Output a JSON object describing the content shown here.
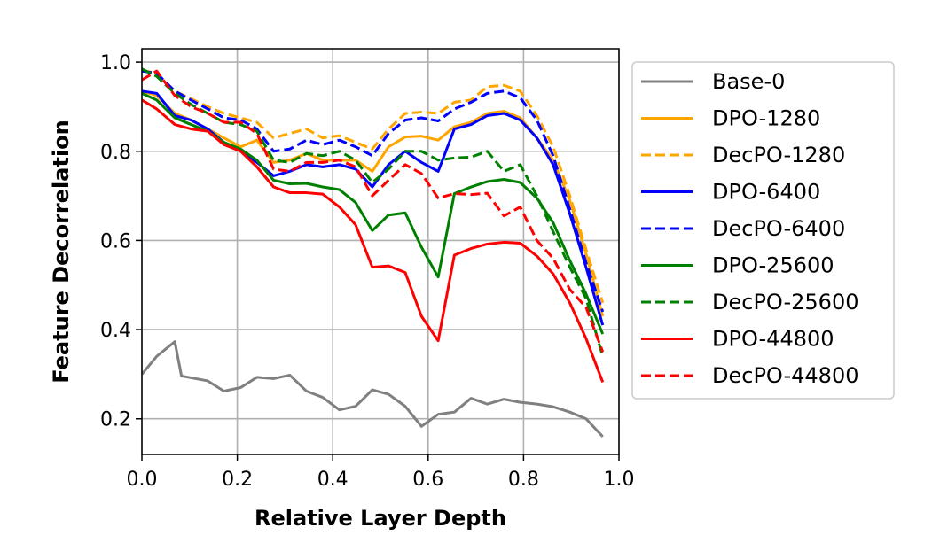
{
  "chart_data": {
    "type": "line",
    "title": "",
    "xlabel": "Relative Layer Depth",
    "ylabel": "Feature Decorrelation",
    "xlim": [
      0.0,
      1.0
    ],
    "ylim": [
      0.12,
      1.03
    ],
    "xticks": [
      "0.0",
      "0.2",
      "0.4",
      "0.6",
      "0.8",
      "1.0"
    ],
    "yticks": [
      "0.2",
      "0.4",
      "0.6",
      "0.8",
      "1.0"
    ],
    "grid": true,
    "legend_position": "right-outside",
    "series": [
      {
        "name": "Base-0",
        "color": "#808080",
        "dash": "solid",
        "x": [
          0.0,
          0.031,
          0.069,
          0.083,
          0.138,
          0.172,
          0.207,
          0.241,
          0.276,
          0.31,
          0.345,
          0.379,
          0.414,
          0.448,
          0.483,
          0.517,
          0.552,
          0.586,
          0.621,
          0.655,
          0.69,
          0.724,
          0.759,
          0.793,
          0.828,
          0.862,
          0.897,
          0.931,
          0.966
        ],
        "y": [
          0.3,
          0.34,
          0.373,
          0.296,
          0.285,
          0.262,
          0.27,
          0.293,
          0.29,
          0.298,
          0.262,
          0.248,
          0.22,
          0.228,
          0.265,
          0.255,
          0.228,
          0.183,
          0.21,
          0.215,
          0.246,
          0.233,
          0.244,
          0.237,
          0.233,
          0.227,
          0.215,
          0.2,
          0.16
        ]
      },
      {
        "name": "DPO-1280",
        "color": "#ffa500",
        "dash": "solid",
        "x": [
          0.0,
          0.031,
          0.069,
          0.103,
          0.138,
          0.172,
          0.207,
          0.241,
          0.276,
          0.31,
          0.345,
          0.379,
          0.414,
          0.448,
          0.483,
          0.517,
          0.552,
          0.586,
          0.621,
          0.655,
          0.69,
          0.724,
          0.759,
          0.793,
          0.828,
          0.862,
          0.897,
          0.931,
          0.966
        ],
        "y": [
          0.935,
          0.925,
          0.885,
          0.87,
          0.85,
          0.83,
          0.81,
          0.825,
          0.775,
          0.78,
          0.795,
          0.78,
          0.78,
          0.78,
          0.755,
          0.81,
          0.832,
          0.834,
          0.825,
          0.855,
          0.865,
          0.885,
          0.89,
          0.875,
          0.83,
          0.78,
          0.69,
          0.57,
          0.43
        ]
      },
      {
        "name": "DecPO-1280",
        "color": "#ffa500",
        "dash": "dashed",
        "x": [
          0.0,
          0.031,
          0.069,
          0.103,
          0.138,
          0.172,
          0.207,
          0.241,
          0.276,
          0.31,
          0.345,
          0.379,
          0.414,
          0.448,
          0.483,
          0.517,
          0.552,
          0.586,
          0.621,
          0.655,
          0.69,
          0.724,
          0.759,
          0.793,
          0.828,
          0.862,
          0.897,
          0.931,
          0.966
        ],
        "y": [
          0.982,
          0.975,
          0.935,
          0.918,
          0.9,
          0.885,
          0.875,
          0.865,
          0.83,
          0.84,
          0.85,
          0.83,
          0.835,
          0.82,
          0.805,
          0.85,
          0.885,
          0.888,
          0.885,
          0.91,
          0.915,
          0.945,
          0.948,
          0.935,
          0.88,
          0.81,
          0.7,
          0.58,
          0.46
        ]
      },
      {
        "name": "DPO-6400",
        "color": "#0000ff",
        "dash": "solid",
        "x": [
          0.0,
          0.031,
          0.069,
          0.103,
          0.138,
          0.172,
          0.207,
          0.241,
          0.276,
          0.31,
          0.345,
          0.379,
          0.414,
          0.448,
          0.483,
          0.517,
          0.552,
          0.586,
          0.621,
          0.655,
          0.69,
          0.724,
          0.759,
          0.793,
          0.828,
          0.862,
          0.897,
          0.931,
          0.966
        ],
        "y": [
          0.935,
          0.93,
          0.88,
          0.87,
          0.85,
          0.82,
          0.8,
          0.775,
          0.745,
          0.755,
          0.77,
          0.765,
          0.77,
          0.76,
          0.72,
          0.77,
          0.8,
          0.775,
          0.755,
          0.85,
          0.86,
          0.88,
          0.885,
          0.87,
          0.83,
          0.77,
          0.66,
          0.54,
          0.41
        ]
      },
      {
        "name": "DecPO-6400",
        "color": "#0000ff",
        "dash": "dashed",
        "x": [
          0.0,
          0.031,
          0.069,
          0.103,
          0.138,
          0.172,
          0.207,
          0.241,
          0.276,
          0.31,
          0.345,
          0.379,
          0.414,
          0.448,
          0.483,
          0.517,
          0.552,
          0.586,
          0.621,
          0.655,
          0.69,
          0.724,
          0.759,
          0.793,
          0.828,
          0.862,
          0.897,
          0.931,
          0.966
        ],
        "y": [
          0.98,
          0.975,
          0.935,
          0.915,
          0.895,
          0.875,
          0.87,
          0.85,
          0.8,
          0.805,
          0.825,
          0.815,
          0.825,
          0.81,
          0.79,
          0.84,
          0.87,
          0.875,
          0.868,
          0.895,
          0.91,
          0.93,
          0.935,
          0.92,
          0.87,
          0.79,
          0.67,
          0.55,
          0.44
        ]
      },
      {
        "name": "DPO-25600",
        "color": "#008000",
        "dash": "solid",
        "x": [
          0.0,
          0.031,
          0.069,
          0.103,
          0.138,
          0.172,
          0.207,
          0.241,
          0.276,
          0.31,
          0.345,
          0.379,
          0.414,
          0.448,
          0.483,
          0.517,
          0.552,
          0.586,
          0.621,
          0.655,
          0.69,
          0.724,
          0.759,
          0.793,
          0.828,
          0.862,
          0.897,
          0.931,
          0.966
        ],
        "y": [
          0.93,
          0.915,
          0.875,
          0.86,
          0.845,
          0.82,
          0.805,
          0.78,
          0.735,
          0.727,
          0.728,
          0.72,
          0.714,
          0.685,
          0.622,
          0.657,
          0.662,
          0.585,
          0.518,
          0.705,
          0.72,
          0.732,
          0.737,
          0.73,
          0.695,
          0.64,
          0.555,
          0.48,
          0.39
        ]
      },
      {
        "name": "DecPO-25600",
        "color": "#008000",
        "dash": "dashed",
        "x": [
          0.0,
          0.031,
          0.069,
          0.103,
          0.138,
          0.172,
          0.207,
          0.241,
          0.276,
          0.31,
          0.345,
          0.379,
          0.414,
          0.448,
          0.483,
          0.517,
          0.552,
          0.586,
          0.621,
          0.655,
          0.69,
          0.724,
          0.759,
          0.793,
          0.828,
          0.862,
          0.897,
          0.931,
          0.966
        ],
        "y": [
          0.985,
          0.968,
          0.93,
          0.905,
          0.885,
          0.865,
          0.86,
          0.845,
          0.78,
          0.775,
          0.795,
          0.79,
          0.8,
          0.78,
          0.73,
          0.76,
          0.8,
          0.8,
          0.78,
          0.785,
          0.787,
          0.8,
          0.755,
          0.77,
          0.7,
          0.62,
          0.54,
          0.47,
          0.34
        ]
      },
      {
        "name": "DPO-44800",
        "color": "#ff0000",
        "dash": "solid",
        "x": [
          0.0,
          0.031,
          0.069,
          0.103,
          0.138,
          0.172,
          0.207,
          0.241,
          0.276,
          0.31,
          0.345,
          0.379,
          0.414,
          0.448,
          0.483,
          0.517,
          0.552,
          0.586,
          0.621,
          0.655,
          0.69,
          0.724,
          0.759,
          0.793,
          0.828,
          0.862,
          0.897,
          0.931,
          0.966
        ],
        "y": [
          0.915,
          0.895,
          0.86,
          0.85,
          0.845,
          0.815,
          0.8,
          0.765,
          0.72,
          0.707,
          0.707,
          0.704,
          0.675,
          0.635,
          0.54,
          0.543,
          0.528,
          0.43,
          0.375,
          0.567,
          0.582,
          0.592,
          0.596,
          0.594,
          0.565,
          0.525,
          0.46,
          0.38,
          0.282
        ]
      },
      {
        "name": "DecPO-44800",
        "color": "#ff0000",
        "dash": "dashed",
        "x": [
          0.0,
          0.031,
          0.069,
          0.103,
          0.138,
          0.172,
          0.207,
          0.241,
          0.276,
          0.31,
          0.345,
          0.379,
          0.414,
          0.448,
          0.483,
          0.517,
          0.552,
          0.586,
          0.621,
          0.655,
          0.69,
          0.724,
          0.759,
          0.793,
          0.828,
          0.862,
          0.897,
          0.931,
          0.966
        ],
        "y": [
          0.96,
          0.98,
          0.925,
          0.9,
          0.885,
          0.865,
          0.865,
          0.84,
          0.76,
          0.755,
          0.775,
          0.775,
          0.78,
          0.765,
          0.7,
          0.735,
          0.77,
          0.75,
          0.695,
          0.705,
          0.703,
          0.706,
          0.655,
          0.675,
          0.6,
          0.56,
          0.49,
          0.45,
          0.35
        ]
      }
    ]
  }
}
